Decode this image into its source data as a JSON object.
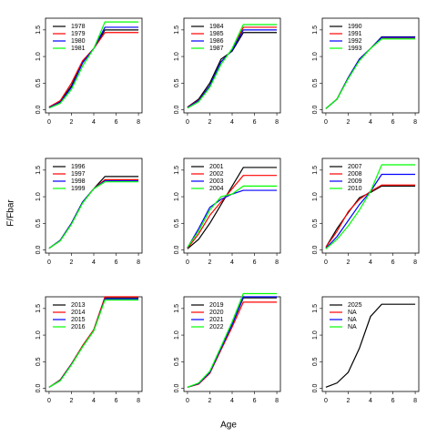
{
  "xlabel": "Age",
  "ylabel": "F/Fbar",
  "chart_data": [
    {
      "type": "line",
      "legend": "topleft",
      "x": [
        0,
        1,
        2,
        3,
        4,
        5,
        6,
        7,
        8
      ],
      "xlim": [
        -0.32,
        8.32
      ],
      "xticks": [
        0,
        2,
        4,
        6,
        8
      ],
      "ylim": [
        -0.06,
        1.72
      ],
      "yticks": [
        {
          "value": 0,
          "label": "0.0"
        },
        {
          "value": 0.5,
          "label": "0.5"
        },
        {
          "value": 1,
          "label": "1.0"
        },
        {
          "value": 1.5,
          "label": "1.5"
        }
      ],
      "series": [
        {
          "name": "1978",
          "color": "#000000",
          "values": [
            0.05,
            0.15,
            0.45,
            0.9,
            1.15,
            1.5,
            1.5,
            1.5,
            1.5
          ]
        },
        {
          "name": "1979",
          "color": "#ff0000",
          "values": [
            0.05,
            0.17,
            0.5,
            0.92,
            1.15,
            1.45,
            1.45,
            1.45,
            1.45
          ]
        },
        {
          "name": "1980",
          "color": "#0000ff",
          "values": [
            0.04,
            0.14,
            0.42,
            0.88,
            1.15,
            1.55,
            1.55,
            1.55,
            1.55
          ]
        },
        {
          "name": "1981",
          "color": "#00ff00",
          "values": [
            0.03,
            0.12,
            0.38,
            0.82,
            1.15,
            1.65,
            1.65,
            1.65,
            1.65
          ]
        }
      ]
    },
    {
      "type": "line",
      "legend": "topleft",
      "x": [
        0,
        1,
        2,
        3,
        4,
        5,
        6,
        7,
        8
      ],
      "xlim": [
        -0.32,
        8.32
      ],
      "xticks": [
        0,
        2,
        4,
        6,
        8
      ],
      "ylim": [
        -0.06,
        1.72
      ],
      "yticks": [
        {
          "value": 0,
          "label": "0.0"
        },
        {
          "value": 0.5,
          "label": "0.5"
        },
        {
          "value": 1,
          "label": "1.0"
        },
        {
          "value": 1.5,
          "label": "1.5"
        }
      ],
      "series": [
        {
          "name": "1984",
          "color": "#000000",
          "values": [
            0.05,
            0.2,
            0.5,
            0.95,
            1.1,
            1.45,
            1.45,
            1.45,
            1.45
          ]
        },
        {
          "name": "1985",
          "color": "#ff0000",
          "values": [
            0.05,
            0.18,
            0.45,
            0.9,
            1.12,
            1.55,
            1.55,
            1.55,
            1.55
          ]
        },
        {
          "name": "1986",
          "color": "#0000ff",
          "values": [
            0.04,
            0.17,
            0.45,
            0.9,
            1.12,
            1.5,
            1.5,
            1.5,
            1.5
          ]
        },
        {
          "name": "1987",
          "color": "#00ff00",
          "values": [
            0.03,
            0.15,
            0.42,
            0.85,
            1.15,
            1.6,
            1.6,
            1.6,
            1.6
          ]
        }
      ]
    },
    {
      "type": "line",
      "legend": "topleft",
      "x": [
        0,
        1,
        2,
        3,
        4,
        5,
        6,
        7,
        8
      ],
      "xlim": [
        -0.32,
        8.32
      ],
      "xticks": [
        0,
        2,
        4,
        6,
        8
      ],
      "ylim": [
        -0.06,
        1.72
      ],
      "yticks": [
        {
          "value": 0,
          "label": "0.0"
        },
        {
          "value": 0.5,
          "label": "0.5"
        },
        {
          "value": 1,
          "label": "1.0"
        },
        {
          "value": 1.5,
          "label": "1.5"
        }
      ],
      "series": [
        {
          "name": "1990",
          "color": "#000000",
          "values": [
            0.02,
            0.2,
            0.6,
            0.95,
            1.15,
            1.37,
            1.37,
            1.37,
            1.37
          ]
        },
        {
          "name": "1991",
          "color": "#ff0000",
          "values": [
            0.02,
            0.2,
            0.6,
            0.95,
            1.15,
            1.35,
            1.35,
            1.35,
            1.35
          ]
        },
        {
          "name": "1992",
          "color": "#0000ff",
          "values": [
            0.02,
            0.2,
            0.6,
            0.95,
            1.15,
            1.36,
            1.36,
            1.36,
            1.36
          ]
        },
        {
          "name": "1993",
          "color": "#00ff00",
          "values": [
            0.02,
            0.2,
            0.58,
            0.92,
            1.15,
            1.33,
            1.33,
            1.33,
            1.33
          ]
        }
      ]
    },
    {
      "type": "line",
      "legend": "topleft",
      "x": [
        0,
        1,
        2,
        3,
        4,
        5,
        6,
        7,
        8
      ],
      "xlim": [
        -0.32,
        8.32
      ],
      "xticks": [
        0,
        2,
        4,
        6,
        8
      ],
      "ylim": [
        -0.06,
        1.72
      ],
      "yticks": [
        {
          "value": 0,
          "label": "0.0"
        },
        {
          "value": 0.5,
          "label": "0.5"
        },
        {
          "value": 1,
          "label": "1.0"
        },
        {
          "value": 1.5,
          "label": "1.5"
        }
      ],
      "series": [
        {
          "name": "1996",
          "color": "#000000",
          "values": [
            0.03,
            0.18,
            0.5,
            0.9,
            1.15,
            1.38,
            1.38,
            1.38,
            1.38
          ]
        },
        {
          "name": "1997",
          "color": "#ff0000",
          "values": [
            0.03,
            0.18,
            0.5,
            0.9,
            1.15,
            1.32,
            1.32,
            1.32,
            1.32
          ]
        },
        {
          "name": "1998",
          "color": "#0000ff",
          "values": [
            0.03,
            0.18,
            0.5,
            0.9,
            1.15,
            1.3,
            1.3,
            1.3,
            1.3
          ]
        },
        {
          "name": "1999",
          "color": "#00ff00",
          "values": [
            0.03,
            0.17,
            0.48,
            0.88,
            1.15,
            1.28,
            1.28,
            1.28,
            1.28
          ]
        }
      ]
    },
    {
      "type": "line",
      "legend": "topleft",
      "x": [
        0,
        1,
        2,
        3,
        4,
        5,
        6,
        7,
        8
      ],
      "xlim": [
        -0.32,
        8.32
      ],
      "xticks": [
        0,
        2,
        4,
        6,
        8
      ],
      "ylim": [
        -0.06,
        1.72
      ],
      "yticks": [
        {
          "value": 0,
          "label": "0.0"
        },
        {
          "value": 0.5,
          "label": "0.5"
        },
        {
          "value": 1,
          "label": "1.0"
        },
        {
          "value": 1.5,
          "label": "1.5"
        }
      ],
      "series": [
        {
          "name": "2001",
          "color": "#000000",
          "values": [
            0.02,
            0.2,
            0.5,
            0.85,
            1.2,
            1.55,
            1.55,
            1.55,
            1.55
          ]
        },
        {
          "name": "2002",
          "color": "#ff0000",
          "values": [
            0.03,
            0.3,
            0.65,
            0.9,
            1.15,
            1.4,
            1.4,
            1.4,
            1.4
          ]
        },
        {
          "name": "2003",
          "color": "#0000ff",
          "values": [
            0.04,
            0.4,
            0.8,
            0.95,
            1.05,
            1.12,
            1.12,
            1.12,
            1.12
          ]
        },
        {
          "name": "2004",
          "color": "#00ff00",
          "values": [
            0.05,
            0.35,
            0.75,
            1.0,
            1.05,
            1.2,
            1.2,
            1.2,
            1.2
          ]
        }
      ]
    },
    {
      "type": "line",
      "legend": "topleft",
      "x": [
        0,
        1,
        2,
        3,
        4,
        5,
        6,
        7,
        8
      ],
      "xlim": [
        -0.32,
        8.32
      ],
      "xticks": [
        0,
        2,
        4,
        6,
        8
      ],
      "ylim": [
        -0.06,
        1.72
      ],
      "yticks": [
        {
          "value": 0,
          "label": "0.0"
        },
        {
          "value": 0.5,
          "label": "0.5"
        },
        {
          "value": 1,
          "label": "1.0"
        },
        {
          "value": 1.5,
          "label": "1.5"
        }
      ],
      "series": [
        {
          "name": "2007",
          "color": "#000000",
          "values": [
            0.05,
            0.4,
            0.7,
            0.98,
            1.08,
            1.2,
            1.2,
            1.2,
            1.2
          ]
        },
        {
          "name": "2008",
          "color": "#ff0000",
          "values": [
            0.05,
            0.35,
            0.72,
            0.95,
            1.1,
            1.22,
            1.22,
            1.22,
            1.22
          ]
        },
        {
          "name": "2009",
          "color": "#0000ff",
          "values": [
            0.03,
            0.25,
            0.55,
            0.85,
            1.1,
            1.42,
            1.42,
            1.42,
            1.42
          ]
        },
        {
          "name": "2010",
          "color": "#00ff00",
          "values": [
            0.02,
            0.2,
            0.45,
            0.75,
            1.1,
            1.6,
            1.6,
            1.6,
            1.6
          ]
        }
      ]
    },
    {
      "type": "line",
      "legend": "topleft",
      "x": [
        0,
        1,
        2,
        3,
        4,
        5,
        6,
        7,
        8
      ],
      "xlim": [
        -0.32,
        8.32
      ],
      "xticks": [
        0,
        2,
        4,
        6,
        8
      ],
      "ylim": [
        -0.06,
        1.72
      ],
      "yticks": [
        {
          "value": 0,
          "label": "0.0"
        },
        {
          "value": 0.5,
          "label": "0.5"
        },
        {
          "value": 1,
          "label": "1.0"
        },
        {
          "value": 1.5,
          "label": "1.5"
        }
      ],
      "series": [
        {
          "name": "2013",
          "color": "#000000",
          "values": [
            0.02,
            0.15,
            0.45,
            0.8,
            1.1,
            1.7,
            1.7,
            1.7,
            1.7
          ]
        },
        {
          "name": "2014",
          "color": "#ff0000",
          "values": [
            0.02,
            0.16,
            0.46,
            0.8,
            1.1,
            1.72,
            1.72,
            1.72,
            1.72
          ]
        },
        {
          "name": "2015",
          "color": "#0000ff",
          "values": [
            0.02,
            0.15,
            0.45,
            0.78,
            1.08,
            1.68,
            1.68,
            1.68,
            1.68
          ]
        },
        {
          "name": "2016",
          "color": "#00ff00",
          "values": [
            0.02,
            0.14,
            0.44,
            0.78,
            1.08,
            1.66,
            1.66,
            1.66,
            1.66
          ]
        }
      ]
    },
    {
      "type": "line",
      "legend": "topleft",
      "x": [
        0,
        1,
        2,
        3,
        4,
        5,
        6,
        7,
        8
      ],
      "xlim": [
        -0.32,
        8.32
      ],
      "xticks": [
        0,
        2,
        4,
        6,
        8
      ],
      "ylim": [
        -0.06,
        1.72
      ],
      "yticks": [
        {
          "value": 0,
          "label": "0.0"
        },
        {
          "value": 0.5,
          "label": "0.5"
        },
        {
          "value": 1,
          "label": "1.0"
        },
        {
          "value": 1.5,
          "label": "1.5"
        }
      ],
      "series": [
        {
          "name": "2019",
          "color": "#000000",
          "values": [
            0.02,
            0.08,
            0.3,
            0.75,
            1.2,
            1.7,
            1.7,
            1.7,
            1.7
          ]
        },
        {
          "name": "2020",
          "color": "#ff0000",
          "values": [
            0.02,
            0.08,
            0.28,
            0.72,
            1.15,
            1.62,
            1.62,
            1.62,
            1.62
          ]
        },
        {
          "name": "2021",
          "color": "#0000ff",
          "values": [
            0.02,
            0.09,
            0.3,
            0.75,
            1.2,
            1.72,
            1.72,
            1.72,
            1.72
          ]
        },
        {
          "name": "2022",
          "color": "#00ff00",
          "values": [
            0.02,
            0.1,
            0.32,
            0.78,
            1.25,
            1.78,
            1.78,
            1.78,
            1.78
          ]
        }
      ]
    },
    {
      "type": "line",
      "legend": "topleft",
      "x": [
        0,
        1,
        2,
        3,
        4,
        5,
        6,
        7,
        8
      ],
      "xlim": [
        -0.32,
        8.32
      ],
      "xticks": [
        0,
        2,
        4,
        6,
        8
      ],
      "ylim": [
        -0.06,
        1.72
      ],
      "yticks": [
        {
          "value": 0,
          "label": "0.0"
        },
        {
          "value": 0.5,
          "label": "0.5"
        },
        {
          "value": 1,
          "label": "1.0"
        },
        {
          "value": 1.5,
          "label": "1.5"
        }
      ],
      "series": [
        {
          "name": "2025",
          "color": "#000000",
          "values": [
            0.02,
            0.1,
            0.3,
            0.75,
            1.35,
            1.58,
            1.58,
            1.58,
            1.58
          ]
        },
        {
          "name": "NA",
          "color": "#ff0000",
          "values": [
            null,
            null,
            null,
            null,
            null,
            null,
            null,
            null,
            null
          ]
        },
        {
          "name": "NA",
          "color": "#0000ff",
          "values": [
            null,
            null,
            null,
            null,
            null,
            null,
            null,
            null,
            null
          ]
        },
        {
          "name": "NA",
          "color": "#00ff00",
          "values": [
            null,
            null,
            null,
            null,
            null,
            null,
            null,
            null,
            null
          ]
        }
      ]
    }
  ]
}
